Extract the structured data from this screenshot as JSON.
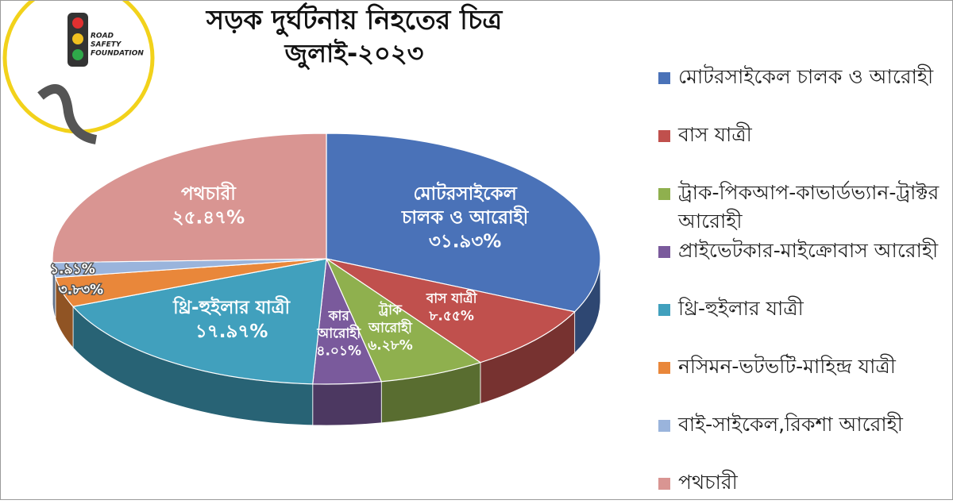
{
  "logo": {
    "lines": [
      "ROAD",
      "SAFETY",
      "FOUNDATION"
    ]
  },
  "chart_data": {
    "type": "pie3d",
    "title": "সড়ক দুর্ঘটনায় নিহতের চিত্র",
    "subtitle": "জুলাই-২০২৩",
    "categories": [
      "মোটরসাইকেল চালক ও আরোহী",
      "বাস যাত্রী",
      "ট্রাক-পিকআপ-কাভার্ডভ্যান-ট্রাক্টর আরোহী",
      "প্রাইভেটকার-মাইক্রোবাস আরোহী",
      "থ্রি-হুইলার যাত্রী",
      "নসিমন-ভটভটি-মাহিন্দ্র যাত্রী",
      "বাই-সাইকেল,রিকশা আরোহী",
      "পথচারী"
    ],
    "values": [
      31.93,
      8.55,
      6.28,
      4.01,
      17.97,
      3.83,
      1.91,
      25.47
    ],
    "value_labels": [
      "৩১.৯৩%",
      "৮.৫৫%",
      "৬.২৮%",
      "৪.০১%",
      "১৭.৯৭%",
      "৩.৮৩%",
      "১.৯১%",
      "২৫.৪৭%"
    ],
    "slice_labels": [
      [
        "মোটরসাইকেল",
        "চালক ও আরোহী"
      ],
      [
        "বাস যাত্রী"
      ],
      [
        "ট্রাক",
        "আরোহী"
      ],
      [
        "কার",
        "আরোহী"
      ],
      [
        "থ্রি-হুইলার যাত্রী"
      ],
      null,
      null,
      [
        "পথচারী"
      ]
    ],
    "colors": [
      "#4a72b8",
      "#c0504d",
      "#8fb04e",
      "#7a5a9c",
      "#41a0bd",
      "#e9873a",
      "#9ab4dc",
      "#d99592"
    ]
  }
}
